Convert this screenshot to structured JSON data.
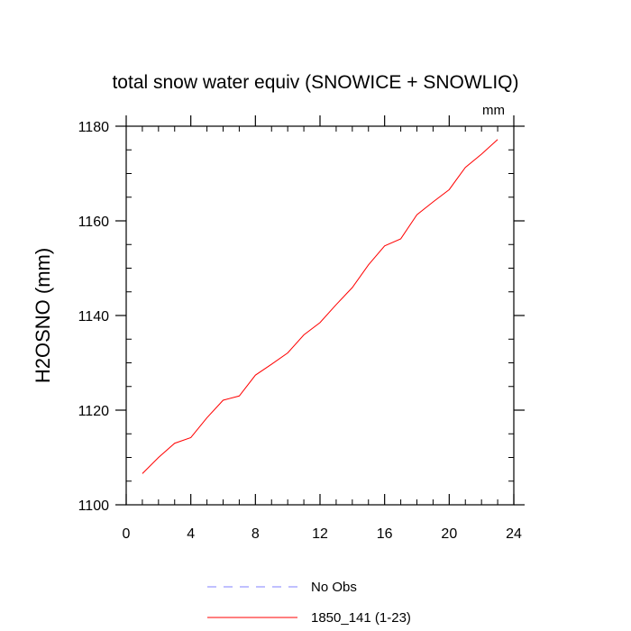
{
  "chart_data": {
    "type": "line",
    "title": "total snow water equiv (SNOWICE + SNOWLIQ)",
    "units": "mm",
    "xlabel": "",
    "ylabel": "H2OSNO  (mm)",
    "xlim": [
      0,
      24
    ],
    "ylim": [
      1100,
      1180
    ],
    "xticks": [
      0,
      4,
      8,
      12,
      16,
      20,
      24
    ],
    "yticks": [
      1100,
      1120,
      1140,
      1160,
      1180
    ],
    "xtick_labels": [
      "0",
      "4",
      "8",
      "12",
      "16",
      "20",
      "24"
    ],
    "ytick_labels": [
      "1100",
      "1120",
      "1140",
      "1160",
      "1180"
    ],
    "grid": false,
    "legend_position": "bottom",
    "series": [
      {
        "name": "No Obs",
        "color": "#8080ff",
        "dash": "dashed",
        "x": [],
        "y": []
      },
      {
        "name": "1850_141 (1-23)",
        "color": "#ff0000",
        "dash": "solid",
        "x": [
          1,
          2,
          3,
          4,
          5,
          6,
          7,
          8,
          9,
          10,
          11,
          12,
          13,
          14,
          15,
          16,
          17,
          18,
          19,
          20,
          21,
          22,
          23
        ],
        "y": [
          1106.6,
          1110.0,
          1113.0,
          1114.2,
          1118.4,
          1122.1,
          1123.0,
          1127.4,
          1129.7,
          1132.1,
          1135.9,
          1138.5,
          1142.3,
          1145.9,
          1150.7,
          1154.7,
          1156.2,
          1161.3,
          1164.0,
          1166.6,
          1171.3,
          1174.1,
          1177.2
        ]
      }
    ]
  }
}
